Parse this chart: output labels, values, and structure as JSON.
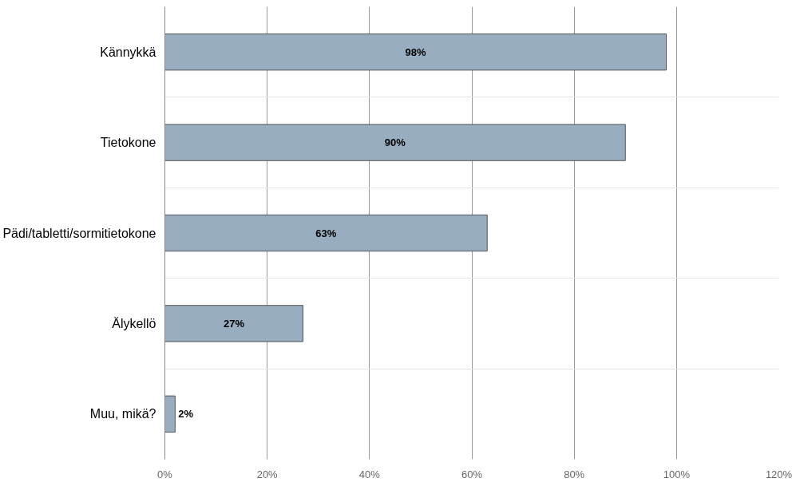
{
  "chart_data": {
    "type": "bar",
    "orientation": "horizontal",
    "categories": [
      "Kännykkä",
      "Tietokone",
      "Pädi/tabletti/sormitietokone",
      "Älykellö",
      "Muu, mikä?"
    ],
    "values": [
      98,
      90,
      63,
      27,
      2
    ],
    "value_labels": [
      "98%",
      "90%",
      "63%",
      "27%",
      "2%"
    ],
    "color": "#98adc0",
    "xlim": [
      0,
      120
    ],
    "xticks": [
      {
        "value": 0,
        "label": "0%"
      },
      {
        "value": 20,
        "label": "20%"
      },
      {
        "value": 40,
        "label": "40%"
      },
      {
        "value": 60,
        "label": "60%"
      },
      {
        "value": 80,
        "label": "80%"
      },
      {
        "value": 100,
        "label": "100%"
      },
      {
        "value": 120,
        "label": "120%"
      }
    ],
    "grid": true
  }
}
